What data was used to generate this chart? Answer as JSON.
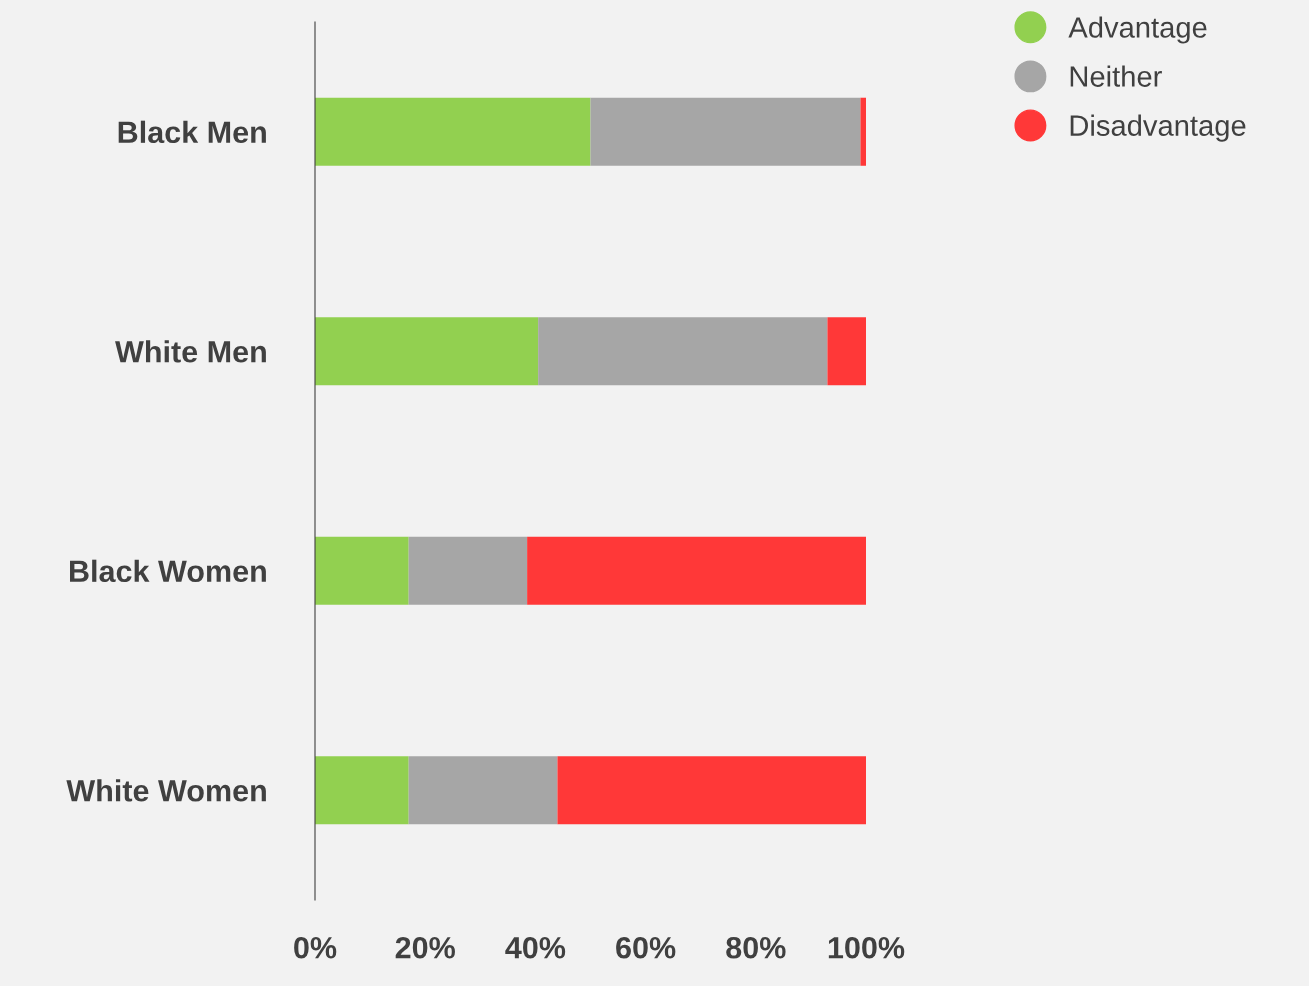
{
  "chart_data": {
    "type": "bar",
    "orientation": "horizontal",
    "stacked": true,
    "categories": [
      "Black Men",
      "White Men",
      "Black Women",
      "White Women"
    ],
    "series": [
      {
        "name": "Advantage",
        "color": "#92d050",
        "values": [
          50,
          40.5,
          17,
          17
        ]
      },
      {
        "name": "Neither",
        "color": "#a6a6a6",
        "values": [
          49,
          52.5,
          21.5,
          27
        ]
      },
      {
        "name": "Disadvantage",
        "color": "#ff3838",
        "values": [
          1,
          7,
          61.5,
          56
        ]
      }
    ],
    "xlim": [
      0,
      100
    ],
    "xticks": [
      {
        "value": 0,
        "label": "0%"
      },
      {
        "value": 20,
        "label": "20%"
      },
      {
        "value": 40,
        "label": "40%"
      },
      {
        "value": 60,
        "label": "60%"
      },
      {
        "value": 80,
        "label": "80%"
      },
      {
        "value": 100,
        "label": "100%"
      }
    ],
    "grid": false,
    "legend": "top right",
    "marker": "circle"
  }
}
